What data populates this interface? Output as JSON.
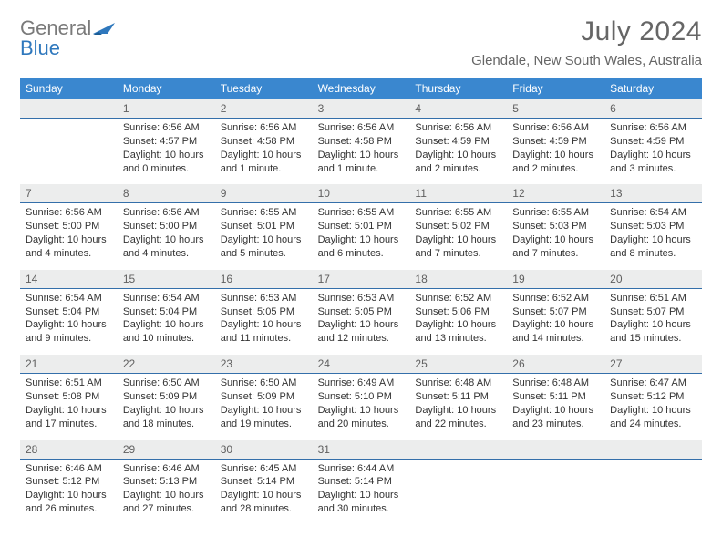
{
  "brand": {
    "general": "General",
    "blue": "Blue"
  },
  "title": "July 2024",
  "location": "Glendale, New South Wales, Australia",
  "colors": {
    "header_bg": "#3a87cf",
    "header_text": "#ffffff",
    "daynum_bg": "#eceded",
    "daynum_border": "#346faa",
    "body_text": "#333333",
    "daynum_text": "#606060",
    "logo_gray": "#7a7a7a",
    "logo_blue": "#2f78bd",
    "title_color": "#666666"
  },
  "day_names": [
    "Sunday",
    "Monday",
    "Tuesday",
    "Wednesday",
    "Thursday",
    "Friday",
    "Saturday"
  ],
  "weeks": [
    {
      "nums": [
        "",
        "1",
        "2",
        "3",
        "4",
        "5",
        "6"
      ],
      "cells": [
        {
          "sunrise": "",
          "sunset": "",
          "daylight": ""
        },
        {
          "sunrise": "Sunrise: 6:56 AM",
          "sunset": "Sunset: 4:57 PM",
          "daylight": "Daylight: 10 hours and 0 minutes."
        },
        {
          "sunrise": "Sunrise: 6:56 AM",
          "sunset": "Sunset: 4:58 PM",
          "daylight": "Daylight: 10 hours and 1 minute."
        },
        {
          "sunrise": "Sunrise: 6:56 AM",
          "sunset": "Sunset: 4:58 PM",
          "daylight": "Daylight: 10 hours and 1 minute."
        },
        {
          "sunrise": "Sunrise: 6:56 AM",
          "sunset": "Sunset: 4:59 PM",
          "daylight": "Daylight: 10 hours and 2 minutes."
        },
        {
          "sunrise": "Sunrise: 6:56 AM",
          "sunset": "Sunset: 4:59 PM",
          "daylight": "Daylight: 10 hours and 2 minutes."
        },
        {
          "sunrise": "Sunrise: 6:56 AM",
          "sunset": "Sunset: 4:59 PM",
          "daylight": "Daylight: 10 hours and 3 minutes."
        }
      ]
    },
    {
      "nums": [
        "7",
        "8",
        "9",
        "10",
        "11",
        "12",
        "13"
      ],
      "cells": [
        {
          "sunrise": "Sunrise: 6:56 AM",
          "sunset": "Sunset: 5:00 PM",
          "daylight": "Daylight: 10 hours and 4 minutes."
        },
        {
          "sunrise": "Sunrise: 6:56 AM",
          "sunset": "Sunset: 5:00 PM",
          "daylight": "Daylight: 10 hours and 4 minutes."
        },
        {
          "sunrise": "Sunrise: 6:55 AM",
          "sunset": "Sunset: 5:01 PM",
          "daylight": "Daylight: 10 hours and 5 minutes."
        },
        {
          "sunrise": "Sunrise: 6:55 AM",
          "sunset": "Sunset: 5:01 PM",
          "daylight": "Daylight: 10 hours and 6 minutes."
        },
        {
          "sunrise": "Sunrise: 6:55 AM",
          "sunset": "Sunset: 5:02 PM",
          "daylight": "Daylight: 10 hours and 7 minutes."
        },
        {
          "sunrise": "Sunrise: 6:55 AM",
          "sunset": "Sunset: 5:03 PM",
          "daylight": "Daylight: 10 hours and 7 minutes."
        },
        {
          "sunrise": "Sunrise: 6:54 AM",
          "sunset": "Sunset: 5:03 PM",
          "daylight": "Daylight: 10 hours and 8 minutes."
        }
      ]
    },
    {
      "nums": [
        "14",
        "15",
        "16",
        "17",
        "18",
        "19",
        "20"
      ],
      "cells": [
        {
          "sunrise": "Sunrise: 6:54 AM",
          "sunset": "Sunset: 5:04 PM",
          "daylight": "Daylight: 10 hours and 9 minutes."
        },
        {
          "sunrise": "Sunrise: 6:54 AM",
          "sunset": "Sunset: 5:04 PM",
          "daylight": "Daylight: 10 hours and 10 minutes."
        },
        {
          "sunrise": "Sunrise: 6:53 AM",
          "sunset": "Sunset: 5:05 PM",
          "daylight": "Daylight: 10 hours and 11 minutes."
        },
        {
          "sunrise": "Sunrise: 6:53 AM",
          "sunset": "Sunset: 5:05 PM",
          "daylight": "Daylight: 10 hours and 12 minutes."
        },
        {
          "sunrise": "Sunrise: 6:52 AM",
          "sunset": "Sunset: 5:06 PM",
          "daylight": "Daylight: 10 hours and 13 minutes."
        },
        {
          "sunrise": "Sunrise: 6:52 AM",
          "sunset": "Sunset: 5:07 PM",
          "daylight": "Daylight: 10 hours and 14 minutes."
        },
        {
          "sunrise": "Sunrise: 6:51 AM",
          "sunset": "Sunset: 5:07 PM",
          "daylight": "Daylight: 10 hours and 15 minutes."
        }
      ]
    },
    {
      "nums": [
        "21",
        "22",
        "23",
        "24",
        "25",
        "26",
        "27"
      ],
      "cells": [
        {
          "sunrise": "Sunrise: 6:51 AM",
          "sunset": "Sunset: 5:08 PM",
          "daylight": "Daylight: 10 hours and 17 minutes."
        },
        {
          "sunrise": "Sunrise: 6:50 AM",
          "sunset": "Sunset: 5:09 PM",
          "daylight": "Daylight: 10 hours and 18 minutes."
        },
        {
          "sunrise": "Sunrise: 6:50 AM",
          "sunset": "Sunset: 5:09 PM",
          "daylight": "Daylight: 10 hours and 19 minutes."
        },
        {
          "sunrise": "Sunrise: 6:49 AM",
          "sunset": "Sunset: 5:10 PM",
          "daylight": "Daylight: 10 hours and 20 minutes."
        },
        {
          "sunrise": "Sunrise: 6:48 AM",
          "sunset": "Sunset: 5:11 PM",
          "daylight": "Daylight: 10 hours and 22 minutes."
        },
        {
          "sunrise": "Sunrise: 6:48 AM",
          "sunset": "Sunset: 5:11 PM",
          "daylight": "Daylight: 10 hours and 23 minutes."
        },
        {
          "sunrise": "Sunrise: 6:47 AM",
          "sunset": "Sunset: 5:12 PM",
          "daylight": "Daylight: 10 hours and 24 minutes."
        }
      ]
    },
    {
      "nums": [
        "28",
        "29",
        "30",
        "31",
        "",
        "",
        ""
      ],
      "cells": [
        {
          "sunrise": "Sunrise: 6:46 AM",
          "sunset": "Sunset: 5:12 PM",
          "daylight": "Daylight: 10 hours and 26 minutes."
        },
        {
          "sunrise": "Sunrise: 6:46 AM",
          "sunset": "Sunset: 5:13 PM",
          "daylight": "Daylight: 10 hours and 27 minutes."
        },
        {
          "sunrise": "Sunrise: 6:45 AM",
          "sunset": "Sunset: 5:14 PM",
          "daylight": "Daylight: 10 hours and 28 minutes."
        },
        {
          "sunrise": "Sunrise: 6:44 AM",
          "sunset": "Sunset: 5:14 PM",
          "daylight": "Daylight: 10 hours and 30 minutes."
        },
        {
          "sunrise": "",
          "sunset": "",
          "daylight": ""
        },
        {
          "sunrise": "",
          "sunset": "",
          "daylight": ""
        },
        {
          "sunrise": "",
          "sunset": "",
          "daylight": ""
        }
      ]
    }
  ]
}
